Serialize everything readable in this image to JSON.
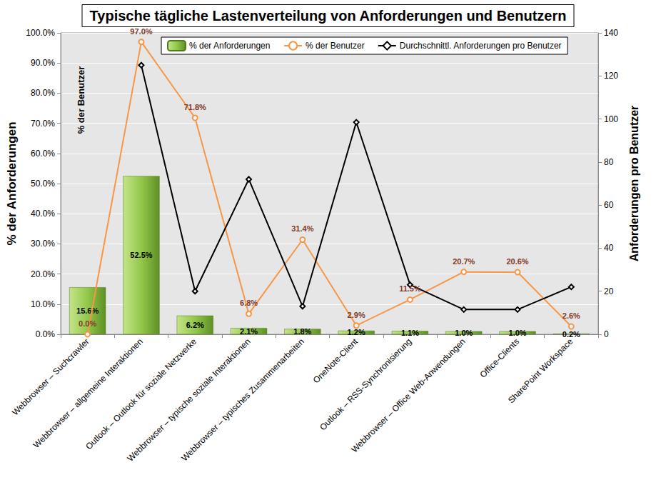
{
  "chart_data": {
    "type": "bar",
    "title": "Typische tägliche Lastenverteilung von Anforderungen und Benutzern",
    "categories": [
      "Webbrowser – Suchcrawler",
      "Webbrowser – allgemeine Interaktionen",
      "Outlook – Outlook für soziale Netzwerke",
      "Webbrowser – typische soziale Interaktionen",
      "Webbrowser – typisches Zusammenarbeiten",
      "OneNote-Client",
      "Outlook – RSS-Synchronisierung",
      "Webbrowser – Office Web-Anwendungen",
      "Office-Clients",
      "SharePoint Workspace"
    ],
    "ylabel": "% der Anforderungen",
    "y2label": "Anforderungen pro Benutzer",
    "annotations": [
      {
        "text": "% der Benutzer"
      }
    ],
    "ylim": [
      0,
      100
    ],
    "yticks": [
      {
        "value": 0,
        "label": "0.0%"
      },
      {
        "value": 10,
        "label": "10.0%"
      },
      {
        "value": 20,
        "label": "20.0%"
      },
      {
        "value": 30,
        "label": "30.0%"
      },
      {
        "value": 40,
        "label": "40.0%"
      },
      {
        "value": 50,
        "label": "50.0%"
      },
      {
        "value": 60,
        "label": "60.0%"
      },
      {
        "value": 70,
        "label": "70.0%"
      },
      {
        "value": 80,
        "label": "80.0%"
      },
      {
        "value": 90,
        "label": "90.0%"
      },
      {
        "value": 100,
        "label": "100.0%"
      }
    ],
    "y2lim": [
      0,
      140
    ],
    "y2ticks": [
      0,
      20,
      40,
      60,
      80,
      100,
      120,
      140
    ],
    "grid": true,
    "legend": "top",
    "series": [
      {
        "name": "% der Anforderungen",
        "type": "bar",
        "color": "#92c84a",
        "data_labels": true,
        "values": [
          15.6,
          52.5,
          6.2,
          2.1,
          1.8,
          1.2,
          1.1,
          1.0,
          1.0,
          0.2
        ],
        "value_labels": [
          "15.6%",
          "52.5%",
          "6.2%",
          "2.1%",
          "1.8%",
          "1.2%",
          "1.1%",
          "1.0%",
          "1.0%",
          "0.2%"
        ]
      },
      {
        "name": "% der Benutzer",
        "type": "line",
        "color": "#f79646",
        "marker": "circle",
        "line_style": "solid",
        "data_labels": true,
        "values": [
          0.0,
          97.0,
          71.8,
          6.8,
          31.4,
          2.9,
          11.5,
          20.7,
          20.6,
          2.6
        ],
        "value_labels": [
          "0.0%",
          "97.0%",
          "71.8%",
          "6.8%",
          "31.4%",
          "2.9%",
          "11.5%",
          "20.7%",
          "20.6%",
          "2.6%"
        ]
      },
      {
        "name": "Durchschnittl. Anforderungen pro Benutzer",
        "type": "line",
        "axis": "y2",
        "color": "#000000",
        "marker": "diamond",
        "line_style": "solid",
        "values": [
          null,
          125,
          20,
          72,
          13,
          98.5,
          23,
          11.5,
          11.5,
          22
        ]
      }
    ]
  }
}
